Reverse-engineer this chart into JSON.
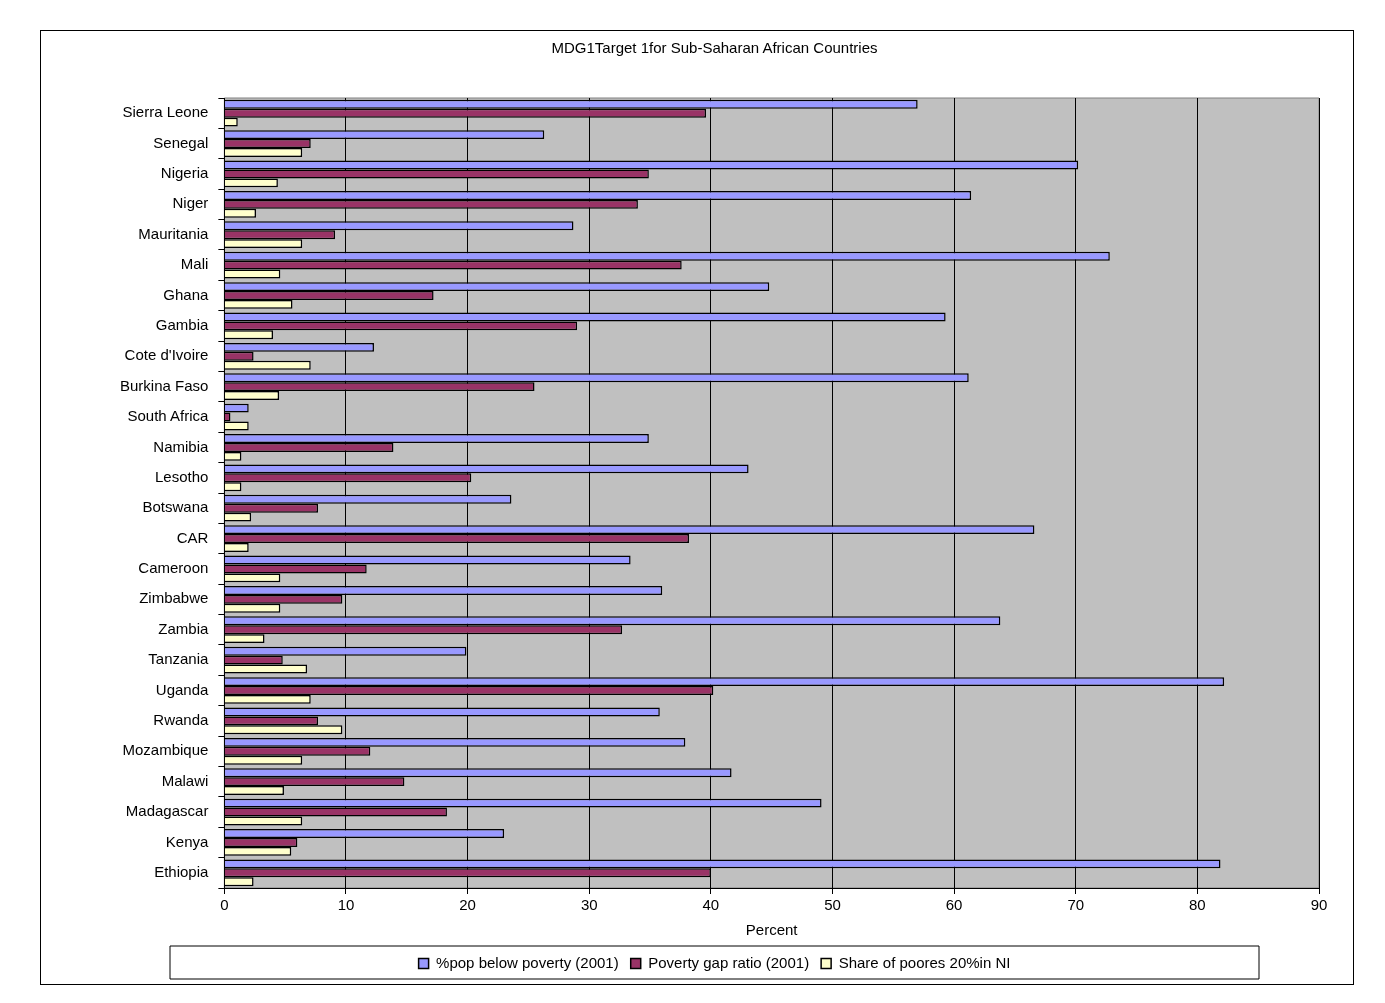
{
  "chart_data": {
    "type": "bar",
    "orientation": "horizontal",
    "title": "MDG1Target 1for Sub-Saharan African Countries",
    "xlabel": "Percent",
    "categories": [
      "Sierra Leone",
      "Senegal",
      "Nigeria",
      "Niger",
      "Mauritania",
      "Mali",
      "Ghana",
      "Gambia",
      "Cote d'Ivoire",
      "Burkina Faso",
      "South Africa",
      "Namibia",
      "Lesotho",
      "Botswana",
      "CAR",
      "Cameroon",
      "Zimbabwe",
      "Zambia",
      "Tanzania",
      "Uganda",
      "Rwanda",
      "Mozambique",
      "Malawi",
      "Madagascar",
      "Kenya",
      "Ethiopia"
    ],
    "series": [
      {
        "name": "%pop below poverty (2001)",
        "color": "#9999ff",
        "values": [
          57.0,
          26.3,
          70.2,
          61.4,
          28.7,
          72.8,
          44.8,
          59.3,
          12.3,
          61.2,
          2.0,
          34.9,
          43.1,
          23.6,
          66.6,
          33.4,
          36.0,
          63.8,
          19.9,
          82.2,
          35.8,
          37.9,
          41.7,
          49.1,
          23.0,
          81.9
        ]
      },
      {
        "name": "Poverty gap ratio (2001)",
        "color": "#993366",
        "values": [
          39.6,
          7.1,
          34.9,
          34.0,
          9.1,
          37.6,
          17.2,
          29.0,
          2.4,
          25.5,
          0.5,
          13.9,
          20.3,
          7.7,
          38.2,
          11.7,
          9.7,
          32.7,
          4.8,
          40.2,
          7.7,
          12.0,
          14.8,
          18.3,
          6.0,
          40.0
        ]
      },
      {
        "name": "Share of poores 20%in NI",
        "color": "#ffffcc",
        "values": [
          1.1,
          6.4,
          4.4,
          2.6,
          6.4,
          4.6,
          5.6,
          4.0,
          7.1,
          4.5,
          2.0,
          1.4,
          1.4,
          2.2,
          2.0,
          4.6,
          4.6,
          3.3,
          6.8,
          7.1,
          9.7,
          6.4,
          4.9,
          6.4,
          5.5,
          2.4
        ]
      }
    ],
    "xlim": [
      0,
      90
    ],
    "xticks": [
      0,
      10,
      20,
      30,
      40,
      50,
      60,
      70,
      80,
      90
    ],
    "grid": "x",
    "legend": "bottom"
  }
}
